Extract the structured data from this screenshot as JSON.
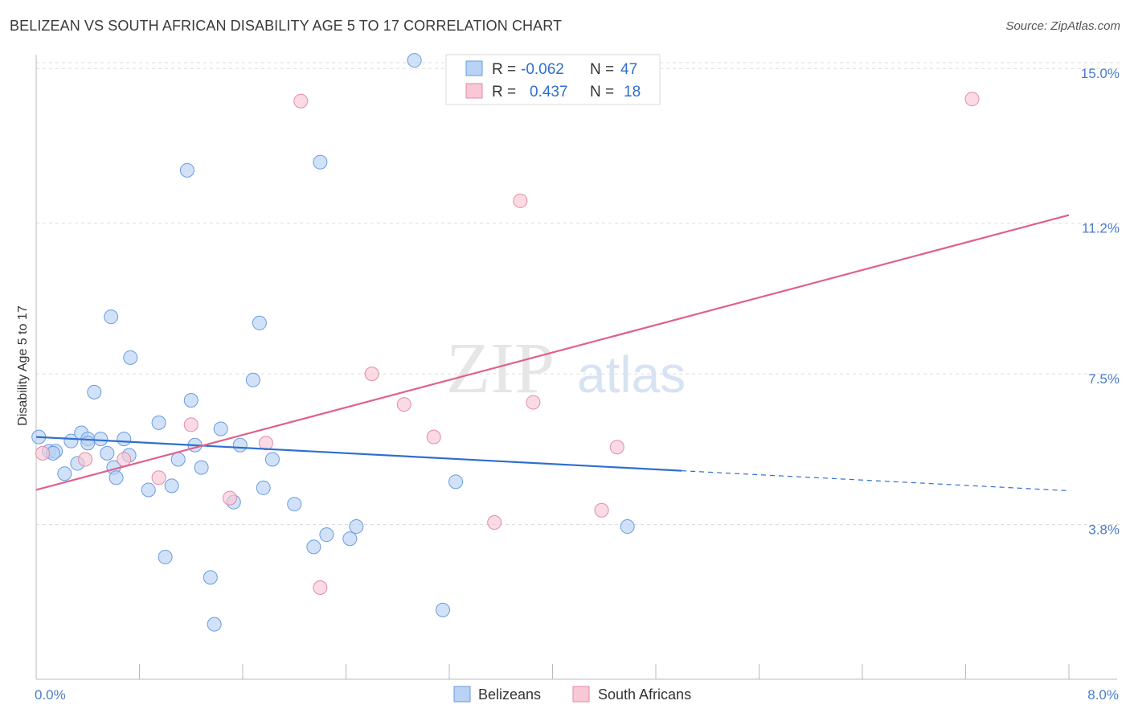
{
  "title": "BELIZEAN VS SOUTH AFRICAN DISABILITY AGE 5 TO 17 CORRELATION CHART",
  "source": "Source: ZipAtlas.com",
  "watermark": {
    "zip": "ZIP",
    "atlas": "atlas"
  },
  "legend": {
    "r_label": "R =",
    "n_label": "N =",
    "rows": [
      {
        "name": "Belizeans",
        "r": "-0.062",
        "n": "47",
        "color": "#b8d3f5",
        "stroke": "#6a9be0"
      },
      {
        "name": "South Africans",
        "r": "0.437",
        "n": "18",
        "color": "#f8c8d6",
        "stroke": "#e58aa8"
      }
    ]
  },
  "chart_data": {
    "type": "scatter",
    "title": "BELIZEAN VS SOUTH AFRICAN DISABILITY AGE 5 TO 17 CORRELATION CHART",
    "xlabel": "",
    "ylabel": "Disability Age 5 to 17",
    "xlim": [
      0,
      8
    ],
    "ylim": [
      0,
      15.3
    ],
    "x_tick_labels": [
      {
        "value": 0,
        "label": "0.0%"
      },
      {
        "value": 8,
        "label": "8.0%"
      }
    ],
    "y_ticks": [
      {
        "value": 3.8,
        "label": "3.8%"
      },
      {
        "value": 7.5,
        "label": "7.5%"
      },
      {
        "value": 11.2,
        "label": "11.2%"
      },
      {
        "value": 15.0,
        "label": "15.0%"
      }
    ],
    "series": [
      {
        "name": "Belizeans",
        "color": "#6a9be0",
        "fill": "#b8d3f5",
        "points": [
          [
            0.02,
            5.95
          ],
          [
            0.1,
            5.6
          ],
          [
            0.15,
            5.6
          ],
          [
            0.22,
            5.05
          ],
          [
            0.27,
            5.85
          ],
          [
            0.32,
            5.3
          ],
          [
            0.35,
            6.05
          ],
          [
            0.4,
            5.9
          ],
          [
            0.5,
            5.9
          ],
          [
            0.45,
            7.05
          ],
          [
            0.55,
            5.55
          ],
          [
            0.6,
            5.2
          ],
          [
            0.62,
            4.95
          ],
          [
            0.68,
            5.9
          ],
          [
            0.72,
            5.5
          ],
          [
            0.58,
            8.9
          ],
          [
            0.73,
            7.9
          ],
          [
            0.87,
            4.65
          ],
          [
            0.95,
            6.3
          ],
          [
            1.0,
            3.0
          ],
          [
            1.05,
            4.75
          ],
          [
            1.1,
            5.4
          ],
          [
            1.2,
            6.85
          ],
          [
            1.17,
            12.5
          ],
          [
            1.23,
            5.75
          ],
          [
            1.28,
            5.2
          ],
          [
            1.35,
            2.5
          ],
          [
            1.38,
            1.35
          ],
          [
            1.43,
            6.15
          ],
          [
            1.53,
            4.35
          ],
          [
            1.58,
            5.75
          ],
          [
            1.68,
            7.35
          ],
          [
            1.73,
            8.75
          ],
          [
            1.76,
            4.7
          ],
          [
            1.83,
            5.4
          ],
          [
            2.0,
            4.3
          ],
          [
            2.15,
            3.25
          ],
          [
            2.2,
            12.7
          ],
          [
            2.25,
            3.55
          ],
          [
            2.43,
            3.45
          ],
          [
            2.48,
            3.75
          ],
          [
            2.93,
            15.2
          ],
          [
            3.15,
            1.7
          ],
          [
            3.25,
            4.85
          ],
          [
            4.58,
            3.75
          ],
          [
            0.4,
            5.8
          ],
          [
            0.13,
            5.55
          ]
        ]
      },
      {
        "name": "South Africans",
        "color": "#e58aa8",
        "fill": "#f8c8d6",
        "points": [
          [
            0.05,
            5.55
          ],
          [
            0.38,
            5.4
          ],
          [
            0.68,
            5.4
          ],
          [
            0.95,
            4.95
          ],
          [
            1.2,
            6.25
          ],
          [
            1.5,
            4.45
          ],
          [
            1.78,
            5.8
          ],
          [
            2.05,
            14.2
          ],
          [
            2.2,
            2.25
          ],
          [
            2.6,
            7.5
          ],
          [
            2.85,
            6.75
          ],
          [
            3.08,
            5.95
          ],
          [
            3.55,
            3.85
          ],
          [
            3.75,
            11.75
          ],
          [
            3.85,
            6.8
          ],
          [
            4.38,
            4.15
          ],
          [
            4.5,
            5.7
          ],
          [
            7.25,
            14.25
          ]
        ]
      }
    ],
    "trend_lines": [
      {
        "series": "Belizeans",
        "color": "#2f6fcf",
        "solid": [
          [
            0.0,
            5.95
          ],
          [
            5.0,
            5.12
          ]
        ],
        "dashed": [
          [
            5.0,
            5.12
          ],
          [
            8.0,
            4.63
          ]
        ]
      },
      {
        "series": "South Africans",
        "color": "#e0608a",
        "solid": [
          [
            0.0,
            4.65
          ],
          [
            8.0,
            11.4
          ]
        ]
      }
    ]
  }
}
